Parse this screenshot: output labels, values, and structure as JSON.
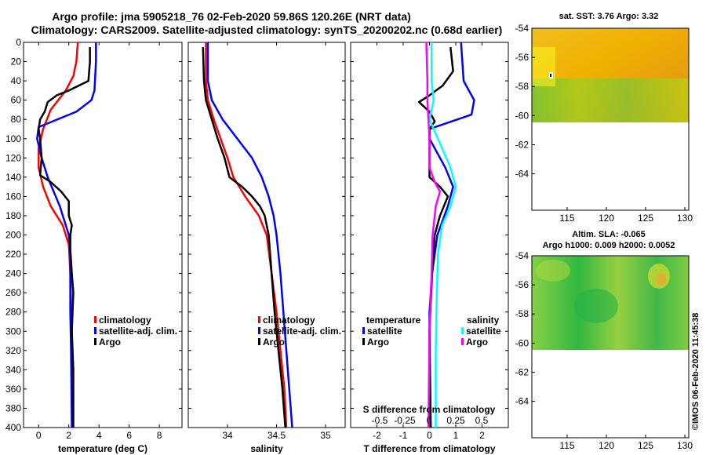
{
  "chart_data": [
    {
      "id": "temperature",
      "type": "line",
      "xlabel": "temperature (deg C)",
      "xlim": [
        -1,
        9.5
      ],
      "ylim": [
        0,
        400
      ],
      "xticks": [
        0,
        2,
        4,
        6,
        8
      ],
      "xtick_labels": [
        "0",
        "2",
        "4",
        "6",
        "8"
      ],
      "yticks": [
        0,
        20,
        40,
        60,
        80,
        100,
        120,
        140,
        160,
        180,
        200,
        220,
        240,
        260,
        280,
        300,
        320,
        340,
        360,
        380,
        400
      ],
      "ytick_labels": [
        "0",
        "20",
        "40",
        "60",
        "80",
        "100",
        "120",
        "140",
        "160",
        "180",
        "200",
        "220",
        "240",
        "260",
        "280",
        "300",
        "320",
        "340",
        "360",
        "380",
        "400"
      ],
      "legend": [
        "climatology",
        "satellite-adj. clim.",
        "Argo"
      ],
      "series": [
        {
          "name": "climatology",
          "color": "#ff0000",
          "points": [
            [
              2.6,
              0
            ],
            [
              2.5,
              20
            ],
            [
              2.3,
              35
            ],
            [
              1.8,
              50
            ],
            [
              0.8,
              70
            ],
            [
              0.3,
              90
            ],
            [
              0.0,
              110
            ],
            [
              0.0,
              130
            ],
            [
              0.3,
              150
            ],
            [
              0.8,
              170
            ],
            [
              1.6,
              190
            ],
            [
              2.0,
              210
            ],
            [
              2.1,
              240
            ],
            [
              2.2,
              300
            ],
            [
              2.25,
              400
            ]
          ]
        },
        {
          "name": "satellite-adj. clim.",
          "color": "#0000ff",
          "points": [
            [
              3.8,
              0
            ],
            [
              3.8,
              20
            ],
            [
              3.7,
              50
            ],
            [
              3.5,
              60
            ],
            [
              2.5,
              72
            ],
            [
              0.0,
              88
            ],
            [
              -0.1,
              100
            ],
            [
              0.2,
              120
            ],
            [
              0.6,
              140
            ],
            [
              1.4,
              170
            ],
            [
              2.0,
              200
            ],
            [
              2.1,
              220
            ],
            [
              2.1,
              280
            ],
            [
              2.15,
              320
            ],
            [
              2.2,
              400
            ]
          ]
        },
        {
          "name": "Argo",
          "color": "#000000",
          "points": [
            [
              3.4,
              5
            ],
            [
              3.4,
              20
            ],
            [
              3.3,
              40
            ],
            [
              2.0,
              50
            ],
            [
              1.2,
              55
            ],
            [
              0.6,
              62
            ],
            [
              0.4,
              72
            ],
            [
              0.1,
              80
            ],
            [
              0.0,
              90
            ],
            [
              0.1,
              100
            ],
            [
              0.2,
              120
            ],
            [
              0.1,
              138
            ],
            [
              0.8,
              145
            ],
            [
              1.5,
              155
            ],
            [
              2.0,
              165
            ],
            [
              2.0,
              180
            ],
            [
              2.2,
              190
            ],
            [
              2.1,
              200
            ],
            [
              2.1,
              215
            ],
            [
              2.2,
              240
            ],
            [
              2.3,
              260
            ],
            [
              2.2,
              300
            ],
            [
              2.3,
              340
            ],
            [
              2.3,
              380
            ],
            [
              2.3,
              400
            ]
          ]
        }
      ]
    },
    {
      "id": "salinity",
      "type": "line",
      "xlabel": "salinity",
      "xlim": [
        33.6,
        35.2
      ],
      "ylim": [
        0,
        400
      ],
      "xticks": [
        34,
        34.5,
        35
      ],
      "xtick_labels": [
        "34",
        "34.5",
        "35"
      ],
      "legend": [
        "climatology",
        "satellite-adj. clim.",
        "Argo"
      ],
      "series": [
        {
          "name": "climatology",
          "color": "#ff0000",
          "points": [
            [
              33.78,
              0
            ],
            [
              33.78,
              40
            ],
            [
              33.8,
              60
            ],
            [
              33.86,
              80
            ],
            [
              33.93,
              100
            ],
            [
              34.0,
              120
            ],
            [
              34.06,
              140
            ],
            [
              34.18,
              160
            ],
            [
              34.32,
              180
            ],
            [
              34.4,
              200
            ],
            [
              34.45,
              240
            ],
            [
              34.5,
              280
            ],
            [
              34.54,
              320
            ],
            [
              34.58,
              360
            ],
            [
              34.6,
              400
            ]
          ]
        },
        {
          "name": "satellite-adj. clim.",
          "color": "#0000ff",
          "points": [
            [
              33.8,
              0
            ],
            [
              33.8,
              40
            ],
            [
              33.84,
              60
            ],
            [
              33.95,
              80
            ],
            [
              34.1,
              100
            ],
            [
              34.25,
              120
            ],
            [
              34.35,
              140
            ],
            [
              34.42,
              160
            ],
            [
              34.47,
              180
            ],
            [
              34.5,
              200
            ],
            [
              34.54,
              240
            ],
            [
              34.57,
              280
            ],
            [
              34.6,
              320
            ],
            [
              34.63,
              360
            ],
            [
              34.66,
              400
            ]
          ]
        },
        {
          "name": "Argo",
          "color": "#000000",
          "points": [
            [
              33.75,
              5
            ],
            [
              33.76,
              40
            ],
            [
              33.78,
              60
            ],
            [
              33.84,
              80
            ],
            [
              33.9,
              100
            ],
            [
              33.97,
              120
            ],
            [
              34.02,
              140
            ],
            [
              34.15,
              150
            ],
            [
              34.25,
              160
            ],
            [
              34.33,
              170
            ],
            [
              34.38,
              180
            ],
            [
              34.42,
              200
            ],
            [
              34.45,
              240
            ],
            [
              34.48,
              280
            ],
            [
              34.52,
              320
            ],
            [
              34.56,
              360
            ],
            [
              34.59,
              400
            ]
          ]
        }
      ]
    },
    {
      "id": "difference",
      "type": "line",
      "xlabel": "T difference from climatology",
      "xlim": [
        -3,
        3
      ],
      "ylim": [
        0,
        400
      ],
      "xticks": [
        -2,
        -1,
        0,
        1,
        2
      ],
      "xtick_labels": [
        "-2",
        "-1",
        "0",
        "1",
        "2"
      ],
      "top_axis_title": "S difference from climatology",
      "top_ticks": [
        -0.5,
        -0.25,
        0,
        0.25,
        0.5
      ],
      "top_tick_labels": [
        "-0.5",
        "-0.25",
        "0",
        "0.25",
        "0.5"
      ],
      "legend_left_title": "temperature",
      "legend_right_title": "salinity",
      "legend": [
        "satellite",
        "Argo",
        "satellite",
        "Argo"
      ],
      "series": [
        {
          "name": "temperature satellite",
          "color": "#0000ff",
          "points": [
            [
              1.2,
              0
            ],
            [
              1.3,
              40
            ],
            [
              1.7,
              60
            ],
            [
              1.6,
              75
            ],
            [
              0.0,
              90
            ],
            [
              0.0,
              100
            ],
            [
              0.6,
              130
            ],
            [
              0.9,
              150
            ],
            [
              0.7,
              170
            ],
            [
              0.3,
              200
            ],
            [
              0.1,
              240
            ],
            [
              0.0,
              280
            ],
            [
              0.0,
              400
            ]
          ]
        },
        {
          "name": "temperature Argo",
          "color": "#000000",
          "points": [
            [
              0.8,
              5
            ],
            [
              0.9,
              30
            ],
            [
              0.5,
              45
            ],
            [
              0.0,
              55
            ],
            [
              -0.4,
              62
            ],
            [
              0.0,
              72
            ],
            [
              0.2,
              82
            ],
            [
              0.0,
              90
            ],
            [
              0.0,
              140
            ],
            [
              0.4,
              150
            ],
            [
              0.7,
              160
            ],
            [
              0.4,
              180
            ],
            [
              0.2,
              200
            ],
            [
              0.1,
              240
            ],
            [
              0.0,
              300
            ],
            [
              0.05,
              400
            ]
          ]
        },
        {
          "name": "salinity satellite",
          "color": "#00ffff",
          "points": [
            [
              0.02,
              0
            ],
            [
              0.02,
              40
            ],
            [
              0.04,
              60
            ],
            [
              0.0,
              80
            ],
            [
              0.08,
              100
            ],
            [
              0.2,
              130
            ],
            [
              0.25,
              150
            ],
            [
              0.2,
              170
            ],
            [
              0.12,
              190
            ],
            [
              0.08,
              220
            ],
            [
              0.07,
              260
            ],
            [
              0.06,
              320
            ],
            [
              0.06,
              400
            ]
          ]
        },
        {
          "name": "salinity Argo",
          "color": "#ff00ff",
          "points": [
            [
              -0.03,
              0
            ],
            [
              -0.02,
              40
            ],
            [
              -0.02,
              60
            ],
            [
              -0.01,
              80
            ],
            [
              0.0,
              100
            ],
            [
              0.0,
              130
            ],
            [
              0.05,
              145
            ],
            [
              0.1,
              155
            ],
            [
              0.06,
              170
            ],
            [
              0.03,
              200
            ],
            [
              0.02,
              240
            ],
            [
              0.0,
              300
            ],
            [
              -0.01,
              400
            ]
          ]
        }
      ]
    },
    {
      "id": "sst-map",
      "type": "heatmap",
      "title": "sat. SST: 3.76 Argo: 3.32",
      "xticks": [
        115,
        120,
        125,
        130
      ],
      "xtick_labels": [
        "115",
        "120",
        "125",
        "130"
      ],
      "yticks": [
        -54,
        -56,
        -58,
        -60,
        -62,
        -64
      ],
      "ytick_labels": [
        "-54",
        "-56",
        "-58",
        "-60",
        "-62",
        "-64"
      ],
      "xlim": [
        110.5,
        130.5
      ],
      "ylim": [
        -66.5,
        -54
      ]
    },
    {
      "id": "sla-map",
      "type": "heatmap",
      "title_line1": "Altim. SLA: -0.065",
      "title_line2": "Argo h1000: 0.009 h2000: 0.0052",
      "xticks": [
        115,
        120,
        125,
        130
      ],
      "xtick_labels": [
        "115",
        "120",
        "125",
        "130"
      ],
      "yticks": [
        -54,
        -56,
        -58,
        -60,
        -62,
        -64
      ],
      "ytick_labels": [
        "-54",
        "-56",
        "-58",
        "-60",
        "-62",
        "-64"
      ],
      "xlim": [
        110.5,
        130.5
      ],
      "ylim": [
        -66.5,
        -54
      ]
    }
  ],
  "header": {
    "title_line1": "Argo profile: jma 5905218_76 02-Feb-2020 59.86S 120.26E (NRT data)",
    "title_line2": "Climatology: CARS2009. Satellite-adjusted climatology: synTS_20200202.nc (0.68d earlier)"
  },
  "credit": "©IMOS 06-Feb-2020 11:45:38"
}
